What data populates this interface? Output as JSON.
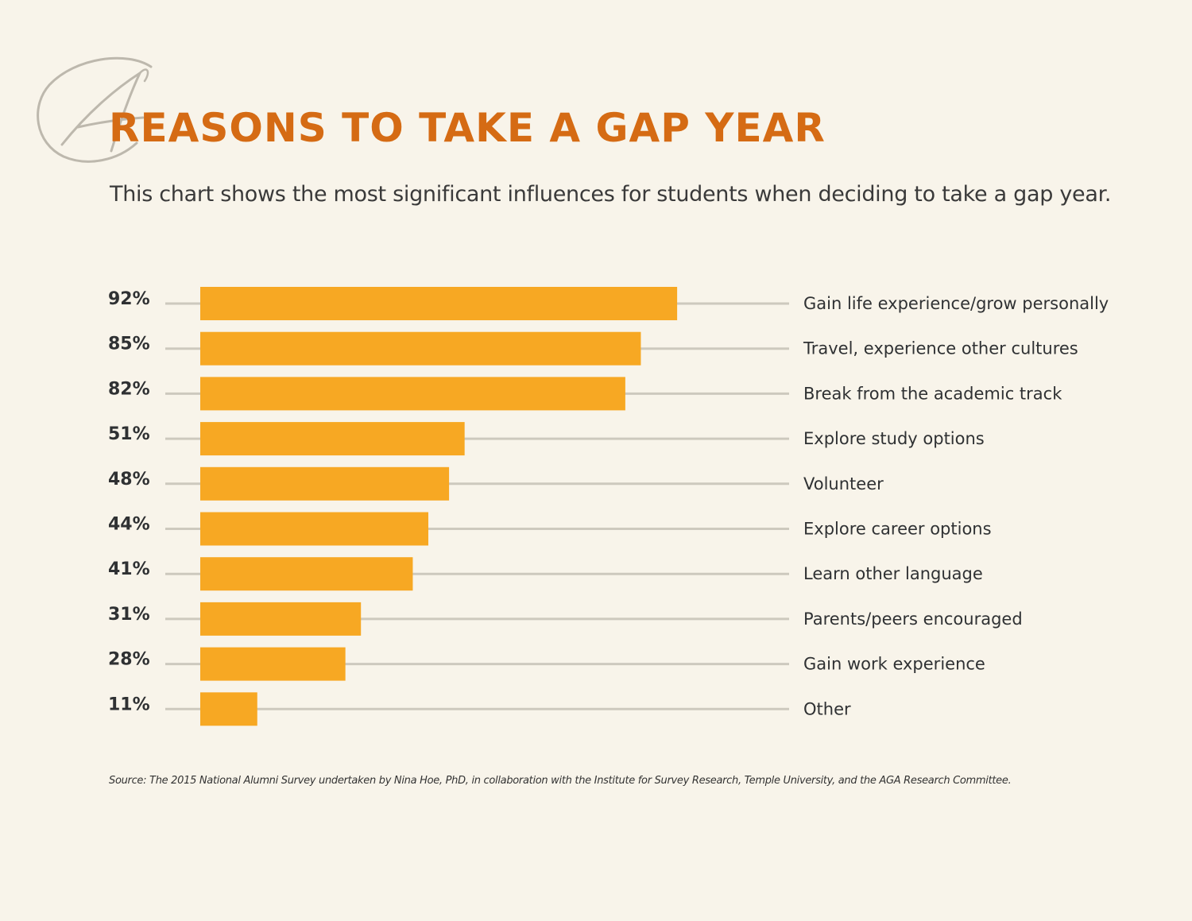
{
  "colors": {
    "background": "#f8f4ea",
    "title": "#d56b14",
    "bar": "#f7a823",
    "track": "#cdc9be",
    "text": "#2f3133",
    "logo": "#bdb8ad"
  },
  "logo": {
    "icon": "handwritten-a-logo-icon"
  },
  "header": {
    "title": "REASONS TO TAKE A GAP YEAR",
    "subtitle": "This chart shows the most significant influences for students when deciding to take a gap year."
  },
  "chart_data": {
    "type": "bar",
    "orientation": "horizontal",
    "categories": [
      "Gain life experience/grow personally",
      "Travel, experience other cultures",
      "Break from the academic track",
      "Explore study options",
      "Volunteer",
      "Explore career options",
      "Learn other language",
      "Parents/peers encouraged",
      "Gain work experience",
      "Other"
    ],
    "values": [
      92,
      85,
      82,
      51,
      48,
      44,
      41,
      31,
      28,
      11
    ],
    "value_labels": [
      "92%",
      "85%",
      "82%",
      "51%",
      "48%",
      "44%",
      "41%",
      "31%",
      "28%",
      "11%"
    ],
    "title": "REASONS TO TAKE A GAP YEAR",
    "xlabel": "",
    "ylabel": "",
    "xlim": [
      0,
      113.6
    ],
    "unit": "%",
    "grid": false,
    "legend": "none"
  },
  "footer": {
    "source": "Source: The 2015 National Alumni Survey undertaken by Nina Hoe, PhD, in collaboration with the Institute for Survey Research, Temple University, and the AGA Research Committee."
  }
}
